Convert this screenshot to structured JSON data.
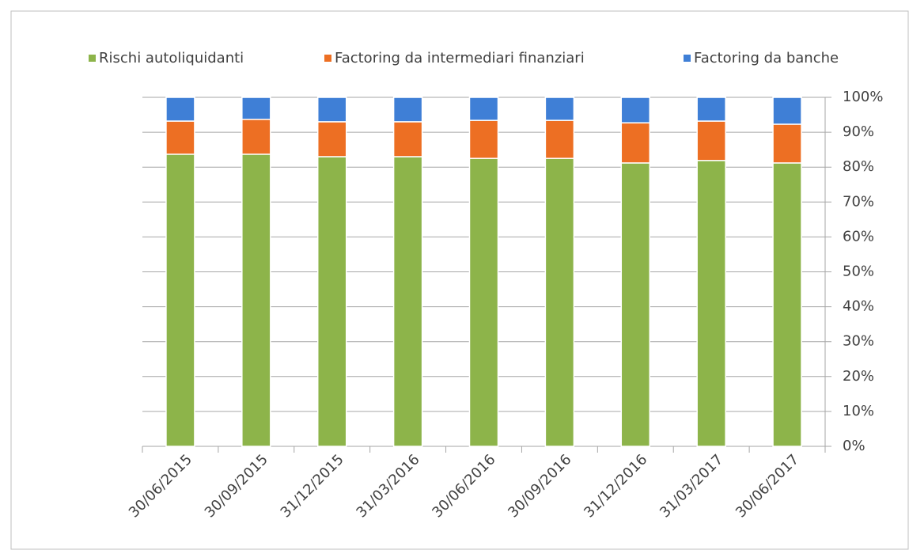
{
  "chart_data": {
    "type": "bar",
    "stacked": true,
    "categories": [
      "30/06/2015",
      "30/09/2015",
      "31/12/2015",
      "31/03/2016",
      "30/06/2016",
      "30/09/2016",
      "31/12/2016",
      "31/03/2017",
      "30/06/2017"
    ],
    "series": [
      {
        "name": "Rischi autoliquidanti",
        "color": "#8db44a",
        "values": [
          83.7,
          83.7,
          83.0,
          83.0,
          82.5,
          82.5,
          81.2,
          81.9,
          81.2
        ]
      },
      {
        "name": "Factoring da intermediari finanziari",
        "color": "#ed6f23",
        "values": [
          9.5,
          10.0,
          10.0,
          10.0,
          10.9,
          10.9,
          11.5,
          11.3,
          11.1
        ]
      },
      {
        "name": "Factoring da banche",
        "color": "#3f7fd6",
        "values": [
          6.8,
          6.3,
          7.0,
          7.0,
          6.6,
          6.6,
          7.3,
          6.8,
          7.7
        ]
      }
    ],
    "ylim": [
      0,
      100
    ],
    "yticks": [
      {
        "value": 0,
        "label": "0%"
      },
      {
        "value": 10,
        "label": "10%"
      },
      {
        "value": 20,
        "label": "20%"
      },
      {
        "value": 30,
        "label": "30%"
      },
      {
        "value": 40,
        "label": "40%"
      },
      {
        "value": 50,
        "label": "50%"
      },
      {
        "value": 60,
        "label": "60%"
      },
      {
        "value": 70,
        "label": "70%"
      },
      {
        "value": 80,
        "label": "80%"
      },
      {
        "value": 90,
        "label": "90%"
      },
      {
        "value": 100,
        "label": "100%"
      }
    ],
    "grid": true,
    "legend": "top"
  }
}
